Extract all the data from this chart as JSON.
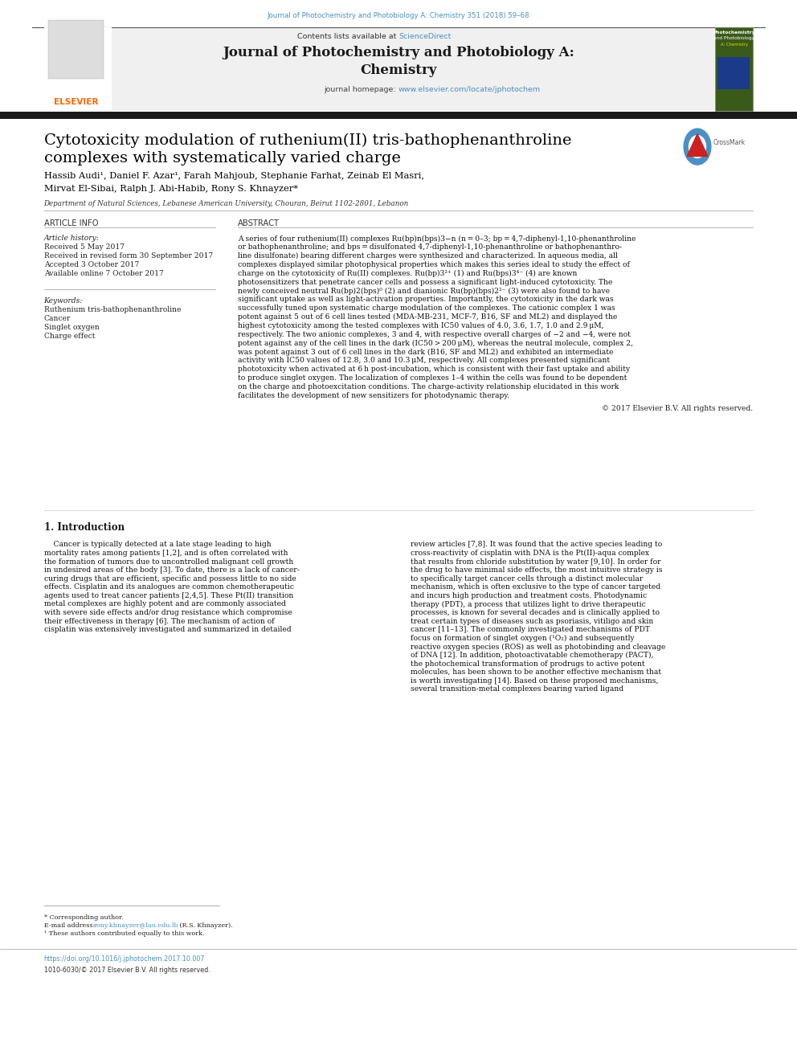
{
  "page_width": 9.92,
  "page_height": 13.23,
  "background_color": "#ffffff",
  "top_journal_ref": "Journal of Photochemistry and Photobiology A: Chemistry 351 (2018) 59–68",
  "top_journal_ref_color": "#4a90c4",
  "header_bg_color": "#f0f0f0",
  "header_sciencedirect": "ScienceDirect",
  "header_sciencedirect_color": "#4a90c4",
  "header_journal_title_line1": "Journal of Photochemistry and Photobiology A:",
  "header_journal_title_line2": "Chemistry",
  "header_homepage_url": "www.elsevier.com/locate/jphotochem",
  "header_homepage_url_color": "#4a90c4",
  "black_bar_color": "#1a1a1a",
  "article_title_line1": "Cytotoxicity modulation of ruthenium(II) tris-bathophenanthroline",
  "article_title_line2": "complexes with systematically varied charge",
  "article_title_color": "#000000",
  "authors_line1": "Hassib Audi¹, Daniel F. Azar¹, Farah Mahjoub, Stephanie Farhat, Zeinab El Masri,",
  "authors_line2": "Mirvat El-Sibai, Ralph J. Abi-Habib, Rony S. Khnayzer*",
  "authors_color": "#000000",
  "affiliation": "Department of Natural Sciences, Lebanese American University, Chouran, Beirut 1102-2801, Lebanon",
  "article_info_header": "ARTICLE INFO",
  "abstract_header": "ABSTRACT",
  "article_history_label": "Article history:",
  "received": "Received 5 May 2017",
  "received_revised": "Received in revised form 30 September 2017",
  "accepted": "Accepted 3 October 2017",
  "available": "Available online 7 October 2017",
  "keywords_label": "Keywords:",
  "keyword1": "Ruthenium tris-bathophenanthroline",
  "keyword2": "Cancer",
  "keyword3": "Singlet oxygen",
  "keyword4": "Charge effect",
  "abstract_lines": [
    "A series of four ruthenium(II) complexes Ru(bp)n(bps)3−n (n = 0–3; bp = 4,7-diphenyl-1,10-phenanthroline",
    "or bathophenanthroline; and bps = disulfonated 4,7-diphenyl-1,10-phenanthroline or bathophenanthro-",
    "line disulfonate) bearing different charges were synthesized and characterized. In aqueous media, all",
    "complexes displayed similar photophysical properties which makes this series ideal to study the effect of",
    "charge on the cytotoxicity of Ru(II) complexes. Ru(bp)3²⁺ (1) and Ru(bps)3⁴⁻ (4) are known",
    "photosensitizers that penetrate cancer cells and possess a significant light-induced cytotoxicity. The",
    "newly conceived neutral Ru(bp)2(bps)⁰ (2) and dianionic Ru(bp)(bps)2²⁻ (3) were also found to have",
    "significant uptake as well as light-activation properties. Importantly, the cytotoxicity in the dark was",
    "successfully tuned upon systematic charge modulation of the complexes. The cationic complex 1 was",
    "potent against 5 out of 6 cell lines tested (MDA-MB-231, MCF-7, B16, SF and ML2) and displayed the",
    "highest cytotoxicity among the tested complexes with IC50 values of 4.0, 3.6, 1.7, 1.0 and 2.9 μM,",
    "respectively. The two anionic complexes, 3 and 4, with respective overall charges of −2 and −4, were not",
    "potent against any of the cell lines in the dark (IC50 > 200 μM), whereas the neutral molecule, complex 2,",
    "was potent against 3 out of 6 cell lines in the dark (B16, SF and ML2) and exhibited an intermediate",
    "activity with IC50 values of 12.8, 3.0 and 10.3 μM, respectively. All complexes presented significant",
    "phototoxicity when activated at 6 h post-incubation, which is consistent with their fast uptake and ability",
    "to produce singlet oxygen. The localization of complexes 1–4 within the cells was found to be dependent",
    "on the charge and photoexcitation conditions. The charge-activity relationship elucidated in this work",
    "facilitates the development of new sensitizers for photodynamic therapy."
  ],
  "copyright": "© 2017 Elsevier B.V. All rights reserved.",
  "section1_header": "1. Introduction",
  "intro_col1_lines": [
    "    Cancer is typically detected at a late stage leading to high",
    "mortality rates among patients [1,2], and is often correlated with",
    "the formation of tumors due to uncontrolled malignant cell growth",
    "in undesired areas of the body [3]. To date, there is a lack of cancer-",
    "curing drugs that are efficient, specific and possess little to no side",
    "effects. Cisplatin and its analogues are common chemotherapeutic",
    "agents used to treat cancer patients [2,4,5]. These Pt(II) transition",
    "metal complexes are highly potent and are commonly associated",
    "with severe side effects and/or drug resistance which compromise",
    "their effectiveness in therapy [6]. The mechanism of action of",
    "cisplatin was extensively investigated and summarized in detailed"
  ],
  "intro_col2_lines": [
    "review articles [7,8]. It was found that the active species leading to",
    "cross-reactivity of cisplatin with DNA is the Pt(II)-aqua complex",
    "that results from chloride substitution by water [9,10]. In order for",
    "the drug to have minimal side effects, the most intuitive strategy is",
    "to specifically target cancer cells through a distinct molecular",
    "mechanism, which is often exclusive to the type of cancer targeted",
    "and incurs high production and treatment costs. Photodynamic",
    "therapy (PDT), a process that utilizes light to drive therapeutic",
    "processes, is known for several decades and is clinically applied to",
    "treat certain types of diseases such as psoriasis, vitiligo and skin",
    "cancer [11–13]. The commonly investigated mechanisms of PDT",
    "focus on formation of singlet oxygen (¹O₂) and subsequently",
    "reactive oxygen species (ROS) as well as photobinding and cleavage",
    "of DNA [12]. In addition, photoactivatable chemotherapy (PACT),",
    "the photochemical transformation of prodrugs to active potent",
    "molecules, has been shown to be another effective mechanism that",
    "is worth investigating [14]. Based on these proposed mechanisms,",
    "several transition-metal complexes bearing varied ligand"
  ],
  "footnote_corresponding": "* Corresponding author.",
  "footnote_email_label": "E-mail address: ",
  "footnote_email": "rony.khnayzer@lau.edu.lb",
  "footnote_email_color": "#4a90c4",
  "footnote_email_suffix": " (R.S. Khnayzer).",
  "footnote_1": "¹ These authors contributed equally to this work.",
  "doi_text": "https://doi.org/10.1016/j.jphotochem.2017.10.007",
  "doi_color": "#4a90c4",
  "issn_text": "1010-6030/© 2017 Elsevier B.V. All rights reserved.",
  "elsevier_color": "#ff6600"
}
